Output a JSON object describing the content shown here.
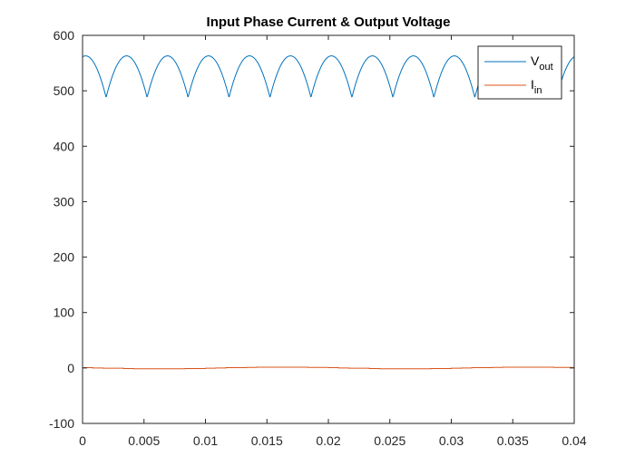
{
  "chart_data": {
    "type": "line",
    "title": "Input Phase Current & Output Voltage",
    "xlabel": "",
    "ylabel": "",
    "xlim": [
      0,
      0.04
    ],
    "ylim": [
      -100,
      600
    ],
    "x_ticks": [
      "0",
      "0.005",
      "0.01",
      "0.015",
      "0.02",
      "0.025",
      "0.03",
      "0.035",
      "0.04"
    ],
    "y_ticks": [
      "600",
      "500",
      "400",
      "300",
      "200",
      "100",
      "0",
      "-100"
    ],
    "x_tick_values": [
      0,
      0.005,
      0.01,
      0.015,
      0.02,
      0.025,
      0.03,
      0.035,
      0.04
    ],
    "y_tick_values": [
      600,
      500,
      400,
      300,
      200,
      100,
      0,
      -100
    ],
    "grid": false,
    "legend_position": "top-right",
    "series": [
      {
        "name": "V_out",
        "legend_main": "V",
        "legend_sub": "out",
        "color": "#0072BD",
        "shape": "six-pulse rectified ripple",
        "peak": 563,
        "trough": 488,
        "ripple_period": 0.003333,
        "first_peak": 0.00025
      },
      {
        "name": "I_in",
        "legend_main": "I",
        "legend_sub": "in",
        "color": "#D95319",
        "shape": "stepped low-amplitude sine",
        "amplitude": 1.5,
        "period": 0.02
      }
    ]
  }
}
